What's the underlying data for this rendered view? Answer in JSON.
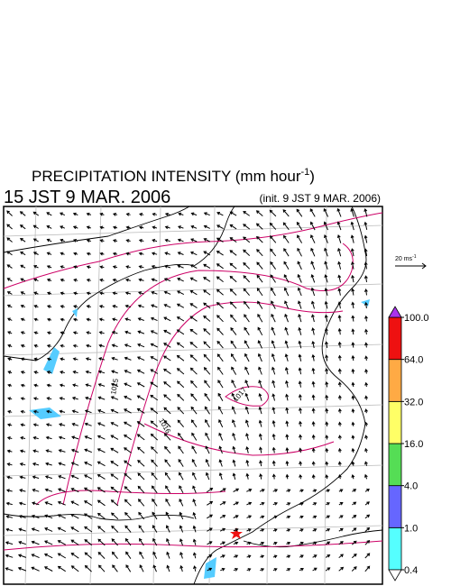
{
  "title": {
    "main": "PRECIPITATION INTENSITY (mm hour",
    "exponent": "-1",
    "close": ")"
  },
  "valid_time": "15 JST 9 MAR. 2006",
  "init_time": "(init. 9 JST 9 MAR. 2006)",
  "wind_scale": {
    "label": "20 ms",
    "exponent": "-1"
  },
  "isobar_labels": [
    "1015",
    "1016",
    "1017"
  ],
  "colorbar": {
    "ticks": [
      0.4,
      {
        "value": 1.0,
        "label": "1.0"
      },
      {
        "value": 4.0,
        "label": "4.0"
      },
      {
        "value": 16.0,
        "label": "16.0"
      },
      {
        "value": 32.0,
        "label": "32.0"
      },
      {
        "value": 64.0,
        "label": "64.0"
      },
      {
        "value": 100.0,
        "label": "100.0"
      }
    ],
    "colors": [
      "#55ffff",
      "#6666ff",
      "#55dd55",
      "#ffff66",
      "#ffaa44",
      "#ee1111"
    ],
    "over_color": "#aa33ee",
    "under_color": "#ffffff"
  }
}
